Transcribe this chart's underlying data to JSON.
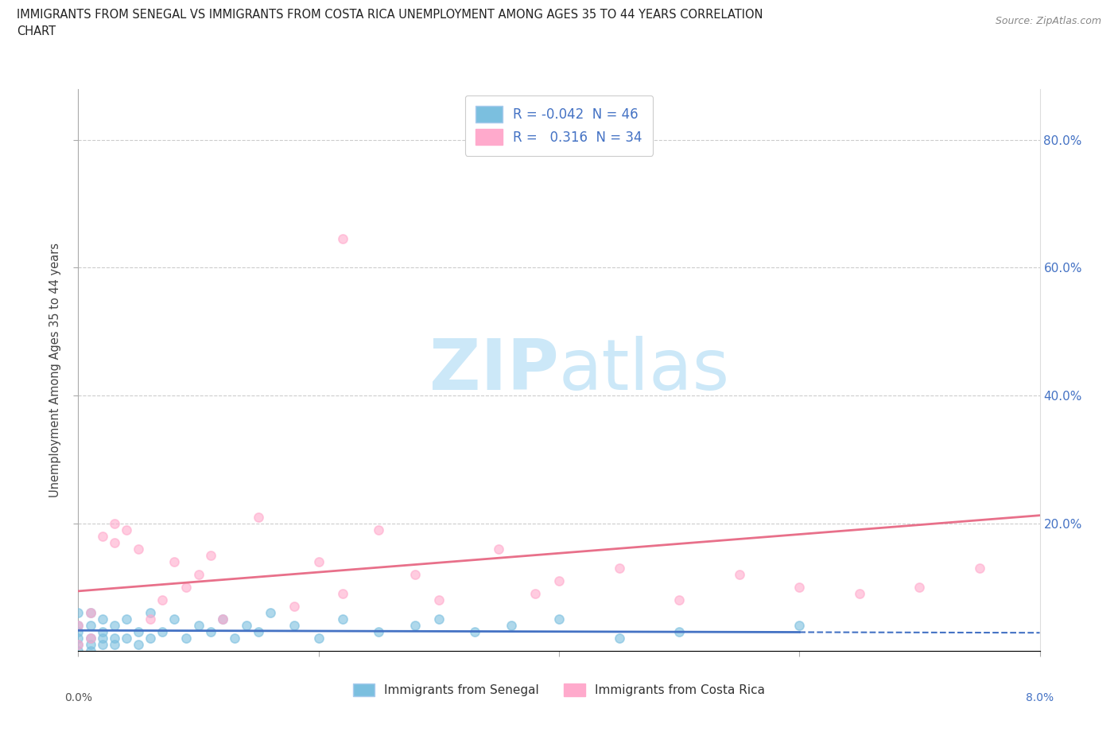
{
  "title_line1": "IMMIGRANTS FROM SENEGAL VS IMMIGRANTS FROM COSTA RICA UNEMPLOYMENT AMONG AGES 35 TO 44 YEARS CORRELATION",
  "title_line2": "CHART",
  "source": "Source: ZipAtlas.com",
  "ylabel": "Unemployment Among Ages 35 to 44 years",
  "xlim": [
    0.0,
    0.08
  ],
  "ylim": [
    0.0,
    0.88
  ],
  "xticks_shown": [
    0.0,
    0.08
  ],
  "xtick_inner": [
    0.02,
    0.04,
    0.06
  ],
  "yticks": [
    0.2,
    0.4,
    0.6,
    0.8
  ],
  "R_senegal": -0.042,
  "N_senegal": 46,
  "R_costarica": 0.316,
  "N_costarica": 34,
  "color_senegal": "#7bbfdf",
  "color_costarica": "#ffaacc",
  "trend_color_senegal": "#4472c4",
  "trend_color_costarica": "#e8708a",
  "watermark_color": "#cce8f8",
  "background_color": "#ffffff",
  "legend_label_senegal": "Immigrants from Senegal",
  "legend_label_costarica": "Immigrants from Costa Rica",
  "senegal_x": [
    0.0,
    0.0,
    0.0,
    0.0,
    0.0,
    0.0,
    0.001,
    0.001,
    0.001,
    0.001,
    0.001,
    0.002,
    0.002,
    0.002,
    0.002,
    0.003,
    0.003,
    0.003,
    0.004,
    0.004,
    0.005,
    0.005,
    0.006,
    0.006,
    0.007,
    0.008,
    0.009,
    0.01,
    0.011,
    0.012,
    0.013,
    0.014,
    0.015,
    0.016,
    0.018,
    0.02,
    0.022,
    0.025,
    0.028,
    0.03,
    0.033,
    0.036,
    0.04,
    0.045,
    0.05,
    0.06
  ],
  "senegal_y": [
    0.0,
    0.01,
    0.02,
    0.03,
    0.04,
    0.06,
    0.0,
    0.01,
    0.02,
    0.04,
    0.06,
    0.01,
    0.02,
    0.03,
    0.05,
    0.01,
    0.02,
    0.04,
    0.02,
    0.05,
    0.01,
    0.03,
    0.02,
    0.06,
    0.03,
    0.05,
    0.02,
    0.04,
    0.03,
    0.05,
    0.02,
    0.04,
    0.03,
    0.06,
    0.04,
    0.02,
    0.05,
    0.03,
    0.04,
    0.05,
    0.03,
    0.04,
    0.05,
    0.02,
    0.03,
    0.04
  ],
  "costarica_x": [
    0.0,
    0.0,
    0.001,
    0.001,
    0.002,
    0.003,
    0.003,
    0.004,
    0.005,
    0.006,
    0.007,
    0.008,
    0.009,
    0.01,
    0.011,
    0.012,
    0.015,
    0.018,
    0.02,
    0.022,
    0.025,
    0.028,
    0.022,
    0.03,
    0.035,
    0.038,
    0.04,
    0.045,
    0.05,
    0.055,
    0.06,
    0.065,
    0.07,
    0.075
  ],
  "costarica_y": [
    0.01,
    0.04,
    0.02,
    0.06,
    0.18,
    0.2,
    0.17,
    0.19,
    0.16,
    0.05,
    0.08,
    0.14,
    0.1,
    0.12,
    0.15,
    0.05,
    0.21,
    0.07,
    0.14,
    0.09,
    0.19,
    0.12,
    0.645,
    0.08,
    0.16,
    0.09,
    0.11,
    0.13,
    0.08,
    0.12,
    0.1,
    0.09,
    0.1,
    0.13
  ]
}
